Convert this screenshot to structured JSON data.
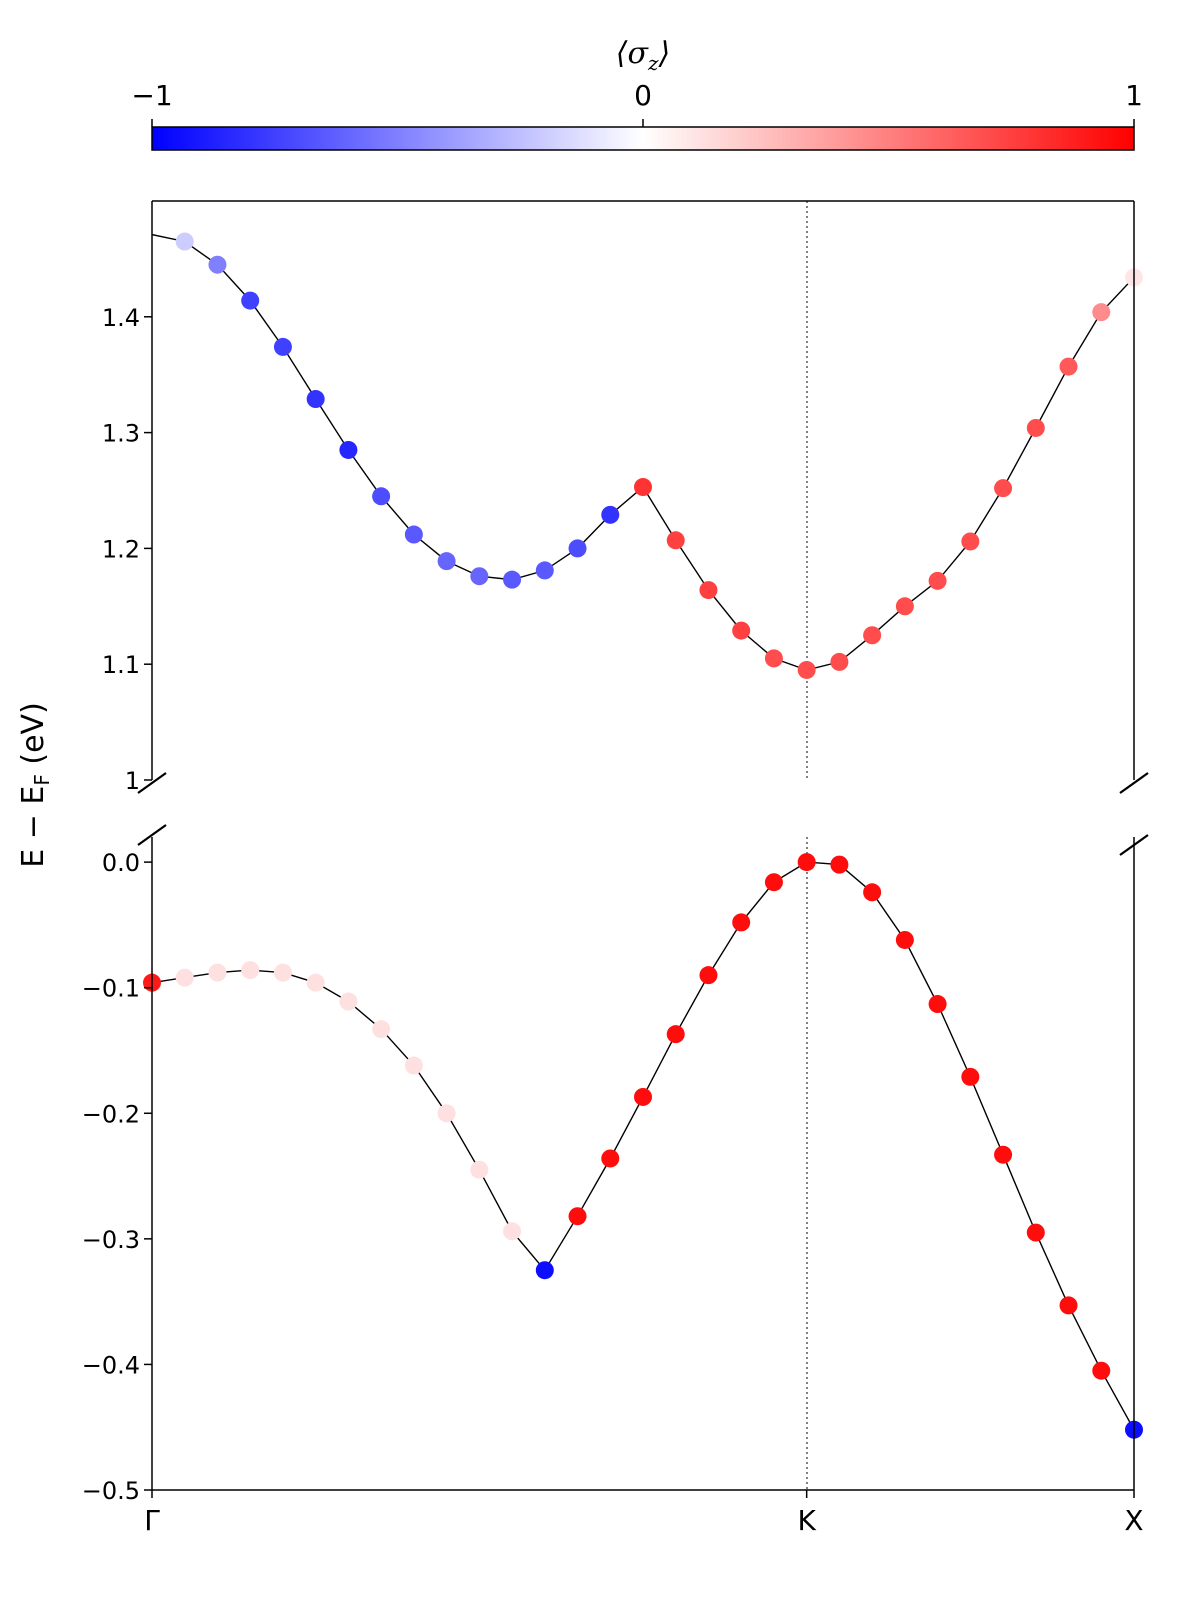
{
  "chart_data": {
    "type": "scatter",
    "ylabel": "E − E",
    "ylabel_subscript": "F",
    "ylabel_unit": " (eV)",
    "colorbar": {
      "label": "⟨σ_z⟩",
      "label_main": "σ",
      "label_sub": "z",
      "label_open": "⟨",
      "label_close": "⟩",
      "min": -1,
      "max": 1,
      "tick_values": [
        -1,
        0,
        1
      ],
      "tick_labels": [
        "−1",
        "0",
        "1"
      ],
      "colormap": "bwr",
      "color_min": "#0000ff",
      "color_mid": "#ffffff",
      "color_max": "#ff0000",
      "placement": "top"
    },
    "x_ticks": [
      {
        "x": 0,
        "label": "Γ"
      },
      {
        "x": 20,
        "label": "K"
      },
      {
        "x": 30,
        "label": "X"
      }
    ],
    "xlim": [
      0,
      30
    ],
    "k_vertical_line_at": 20,
    "grid": false,
    "broken_y_axis": true,
    "panels": [
      {
        "name": "upper",
        "ylim": [
          1.0,
          1.5
        ],
        "y_ticks": [
          1.0,
          1.1,
          1.2,
          1.3,
          1.4
        ],
        "y_tick_labels": [
          "1",
          "1.1",
          "1.2",
          "1.3",
          "1.4"
        ],
        "series": [
          {
            "line": [
              [
                0,
                1.471
              ],
              [
                1,
                1.465
              ],
              [
                2,
                1.445
              ],
              [
                3,
                1.414
              ],
              [
                4,
                1.374
              ],
              [
                5,
                1.329
              ],
              [
                6,
                1.285
              ],
              [
                7,
                1.245
              ],
              [
                8,
                1.212
              ],
              [
                9,
                1.189
              ],
              [
                10,
                1.176
              ],
              [
                11,
                1.173
              ],
              [
                12,
                1.181
              ],
              [
                13,
                1.2
              ],
              [
                14,
                1.229
              ],
              [
                15,
                1.253
              ],
              [
                16,
                1.207
              ],
              [
                17,
                1.164
              ],
              [
                18,
                1.129
              ],
              [
                19,
                1.105
              ],
              [
                20,
                1.095
              ],
              [
                21,
                1.102
              ],
              [
                22,
                1.125
              ],
              [
                23,
                1.15
              ],
              [
                24,
                1.172
              ],
              [
                25,
                1.206
              ],
              [
                26,
                1.252
              ],
              [
                27,
                1.304
              ],
              [
                28,
                1.357
              ],
              [
                29,
                1.404
              ],
              [
                30,
                1.434
              ]
            ],
            "points": [
              {
                "x": 1,
                "y": 1.465,
                "s": -0.2
              },
              {
                "x": 2,
                "y": 1.445,
                "s": -0.5
              },
              {
                "x": 3,
                "y": 1.414,
                "s": -0.75
              },
              {
                "x": 4,
                "y": 1.374,
                "s": -0.75
              },
              {
                "x": 5,
                "y": 1.329,
                "s": -0.8
              },
              {
                "x": 6,
                "y": 1.285,
                "s": -0.85
              },
              {
                "x": 7,
                "y": 1.245,
                "s": -0.7
              },
              {
                "x": 8,
                "y": 1.212,
                "s": -0.65
              },
              {
                "x": 9,
                "y": 1.189,
                "s": -0.6
              },
              {
                "x": 10,
                "y": 1.176,
                "s": -0.6
              },
              {
                "x": 11,
                "y": 1.173,
                "s": -0.65
              },
              {
                "x": 12,
                "y": 1.181,
                "s": -0.65
              },
              {
                "x": 13,
                "y": 1.2,
                "s": -0.7
              },
              {
                "x": 14,
                "y": 1.229,
                "s": -0.8
              },
              {
                "x": 15,
                "y": 1.253,
                "s": 0.8
              },
              {
                "x": 16,
                "y": 1.207,
                "s": 0.75
              },
              {
                "x": 17,
                "y": 1.164,
                "s": 0.75
              },
              {
                "x": 18,
                "y": 1.129,
                "s": 0.75
              },
              {
                "x": 19,
                "y": 1.105,
                "s": 0.7
              },
              {
                "x": 20,
                "y": 1.095,
                "s": 0.7
              },
              {
                "x": 21,
                "y": 1.102,
                "s": 0.7
              },
              {
                "x": 22,
                "y": 1.125,
                "s": 0.7
              },
              {
                "x": 23,
                "y": 1.15,
                "s": 0.7
              },
              {
                "x": 24,
                "y": 1.172,
                "s": 0.7
              },
              {
                "x": 25,
                "y": 1.206,
                "s": 0.7
              },
              {
                "x": 26,
                "y": 1.252,
                "s": 0.7
              },
              {
                "x": 27,
                "y": 1.304,
                "s": 0.7
              },
              {
                "x": 28,
                "y": 1.357,
                "s": 0.65
              },
              {
                "x": 29,
                "y": 1.404,
                "s": 0.45
              },
              {
                "x": 30,
                "y": 1.434,
                "s": 0.1
              }
            ]
          }
        ]
      },
      {
        "name": "lower",
        "ylim": [
          -0.5,
          0.02
        ],
        "y_ticks": [
          0.0,
          -0.1,
          -0.2,
          -0.3,
          -0.4,
          -0.5
        ],
        "y_tick_labels": [
          "0.0",
          "−0.1",
          "−0.2",
          "−0.3",
          "−0.4",
          "−0.5"
        ],
        "series": [
          {
            "line": [
              [
                0,
                -0.096
              ],
              [
                1,
                -0.092
              ],
              [
                2,
                -0.088
              ],
              [
                3,
                -0.086
              ],
              [
                4,
                -0.088
              ],
              [
                5,
                -0.096
              ],
              [
                6,
                -0.111
              ],
              [
                7,
                -0.133
              ],
              [
                8,
                -0.162
              ],
              [
                9,
                -0.2
              ],
              [
                10,
                -0.245
              ],
              [
                11,
                -0.294
              ],
              [
                12,
                -0.325
              ],
              [
                13,
                -0.282
              ],
              [
                14,
                -0.236
              ],
              [
                15,
                -0.187
              ],
              [
                16,
                -0.137
              ],
              [
                17,
                -0.09
              ],
              [
                18,
                -0.048
              ],
              [
                19,
                -0.016
              ],
              [
                20,
                0.0
              ],
              [
                21,
                -0.002
              ],
              [
                22,
                -0.024
              ],
              [
                23,
                -0.062
              ],
              [
                24,
                -0.113
              ],
              [
                25,
                -0.171
              ],
              [
                26,
                -0.233
              ],
              [
                27,
                -0.295
              ],
              [
                28,
                -0.353
              ],
              [
                29,
                -0.405
              ],
              [
                30,
                -0.452
              ]
            ],
            "points": [
              {
                "x": 0,
                "y": -0.096,
                "s": 0.9
              },
              {
                "x": 1,
                "y": -0.092,
                "s": 0.12
              },
              {
                "x": 2,
                "y": -0.088,
                "s": 0.12
              },
              {
                "x": 3,
                "y": -0.086,
                "s": 0.12
              },
              {
                "x": 4,
                "y": -0.088,
                "s": 0.12
              },
              {
                "x": 5,
                "y": -0.096,
                "s": 0.12
              },
              {
                "x": 6,
                "y": -0.111,
                "s": 0.12
              },
              {
                "x": 7,
                "y": -0.133,
                "s": 0.12
              },
              {
                "x": 8,
                "y": -0.162,
                "s": 0.12
              },
              {
                "x": 9,
                "y": -0.2,
                "s": 0.12
              },
              {
                "x": 10,
                "y": -0.245,
                "s": 0.12
              },
              {
                "x": 11,
                "y": -0.294,
                "s": 0.12
              },
              {
                "x": 12,
                "y": -0.325,
                "s": -0.95
              },
              {
                "x": 13,
                "y": -0.282,
                "s": 0.95
              },
              {
                "x": 14,
                "y": -0.236,
                "s": 0.95
              },
              {
                "x": 15,
                "y": -0.187,
                "s": 0.95
              },
              {
                "x": 16,
                "y": -0.137,
                "s": 0.95
              },
              {
                "x": 17,
                "y": -0.09,
                "s": 0.95
              },
              {
                "x": 18,
                "y": -0.048,
                "s": 0.95
              },
              {
                "x": 19,
                "y": -0.016,
                "s": 0.95
              },
              {
                "x": 20,
                "y": 0.0,
                "s": 0.95
              },
              {
                "x": 21,
                "y": -0.002,
                "s": 0.95
              },
              {
                "x": 22,
                "y": -0.024,
                "s": 0.95
              },
              {
                "x": 23,
                "y": -0.062,
                "s": 0.95
              },
              {
                "x": 24,
                "y": -0.113,
                "s": 0.95
              },
              {
                "x": 25,
                "y": -0.171,
                "s": 0.95
              },
              {
                "x": 26,
                "y": -0.233,
                "s": 0.95
              },
              {
                "x": 27,
                "y": -0.295,
                "s": 0.95
              },
              {
                "x": 28,
                "y": -0.353,
                "s": 0.95
              },
              {
                "x": 29,
                "y": -0.405,
                "s": 0.95
              },
              {
                "x": 30,
                "y": -0.452,
                "s": -0.95
              }
            ]
          }
        ]
      }
    ]
  }
}
